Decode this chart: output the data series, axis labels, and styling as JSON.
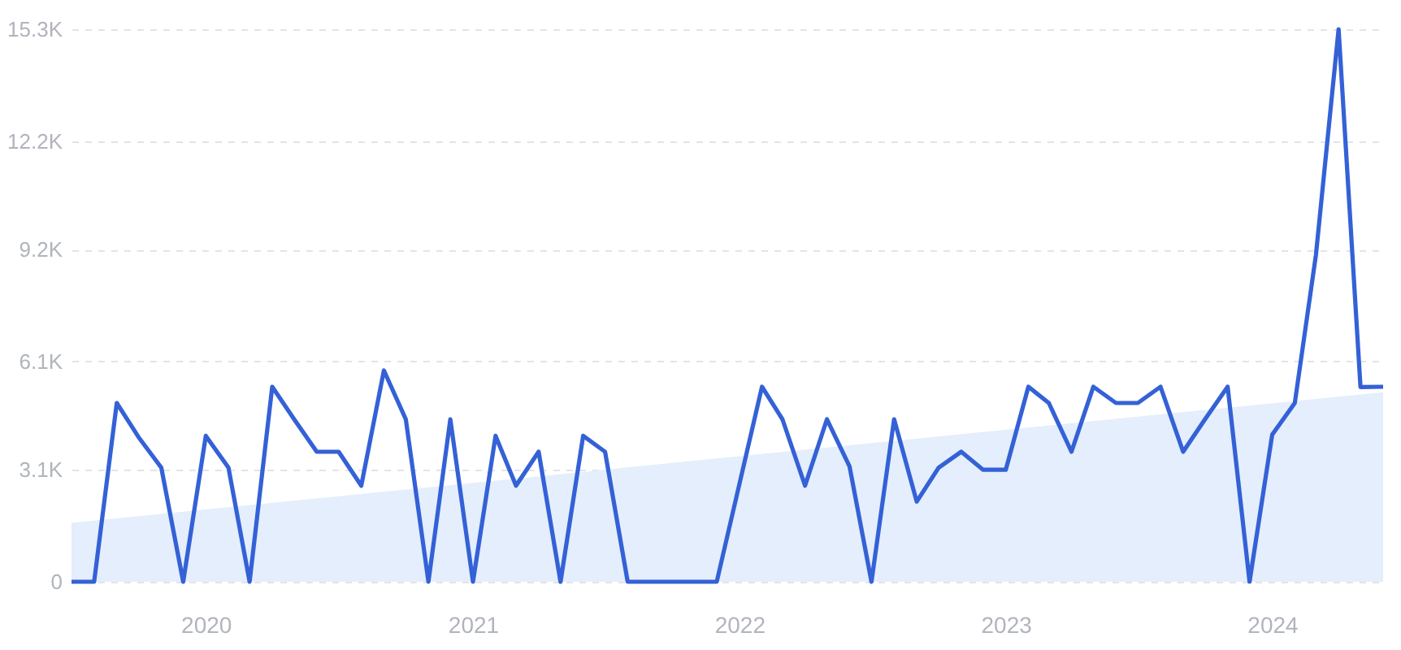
{
  "chart_data": {
    "type": "line",
    "x": [
      "2019-07",
      "2019-08",
      "2019-09",
      "2019-10",
      "2019-11",
      "2019-12",
      "2020-01",
      "2020-02",
      "2020-03",
      "2020-04",
      "2020-05",
      "2020-06",
      "2020-07",
      "2020-08",
      "2020-09",
      "2020-10",
      "2020-11",
      "2020-12",
      "2021-01",
      "2021-02",
      "2021-03",
      "2021-04",
      "2021-05",
      "2021-06",
      "2021-07",
      "2021-08",
      "2021-09",
      "2021-10",
      "2021-11",
      "2021-12",
      "2022-01",
      "2022-02",
      "2022-03",
      "2022-04",
      "2022-05",
      "2022-06",
      "2022-07",
      "2022-08",
      "2022-09",
      "2022-10",
      "2022-11",
      "2022-12",
      "2023-01",
      "2023-02",
      "2023-03",
      "2023-04",
      "2023-05",
      "2023-06",
      "2023-07",
      "2023-08",
      "2023-09",
      "2023-10",
      "2023-11",
      "2023-12",
      "2024-01",
      "2024-02",
      "2024-03",
      "2024-04",
      "2024-05",
      "2024-06"
    ],
    "series": [
      {
        "type": "area",
        "color": "#e4eefc",
        "x": [
          "2019-07",
          "2024-06"
        ],
        "values": [
          1630,
          5250
        ]
      },
      {
        "type": "line",
        "color": "#3461d6",
        "values": [
          0,
          0,
          4950,
          4000,
          3160,
          0,
          4040,
          3160,
          0,
          5400,
          4500,
          3600,
          3600,
          2660,
          5850,
          4500,
          0,
          4500,
          0,
          4040,
          2660,
          3600,
          0,
          4040,
          3600,
          0,
          0,
          0,
          0,
          0,
          2700,
          5400,
          4500,
          2660,
          4500,
          3190,
          0,
          4500,
          2220,
          3160,
          3600,
          3100,
          3100,
          5400,
          4950,
          3600,
          5400,
          4950,
          4950,
          5400,
          3600,
          4500,
          5400,
          0,
          4070,
          4950,
          9060,
          15300,
          5390,
          5400
        ]
      }
    ],
    "xlim": [
      "2019-07",
      "2024-06"
    ],
    "xticks": [
      "2020",
      "2021",
      "2022",
      "2023",
      "2024"
    ],
    "ylim": [
      0,
      15300
    ],
    "yticks": [
      0,
      {
        "value": 3100,
        "label": "3.1K"
      },
      {
        "value": 6100,
        "label": "6.1K"
      },
      {
        "value": 9200,
        "label": "9.2K"
      },
      {
        "value": 12200,
        "label": "12.2K"
      },
      {
        "value": 15300,
        "label": "15.3K"
      }
    ],
    "grid": "y",
    "legend": false,
    "marker": "none",
    "line_style": "solid"
  }
}
